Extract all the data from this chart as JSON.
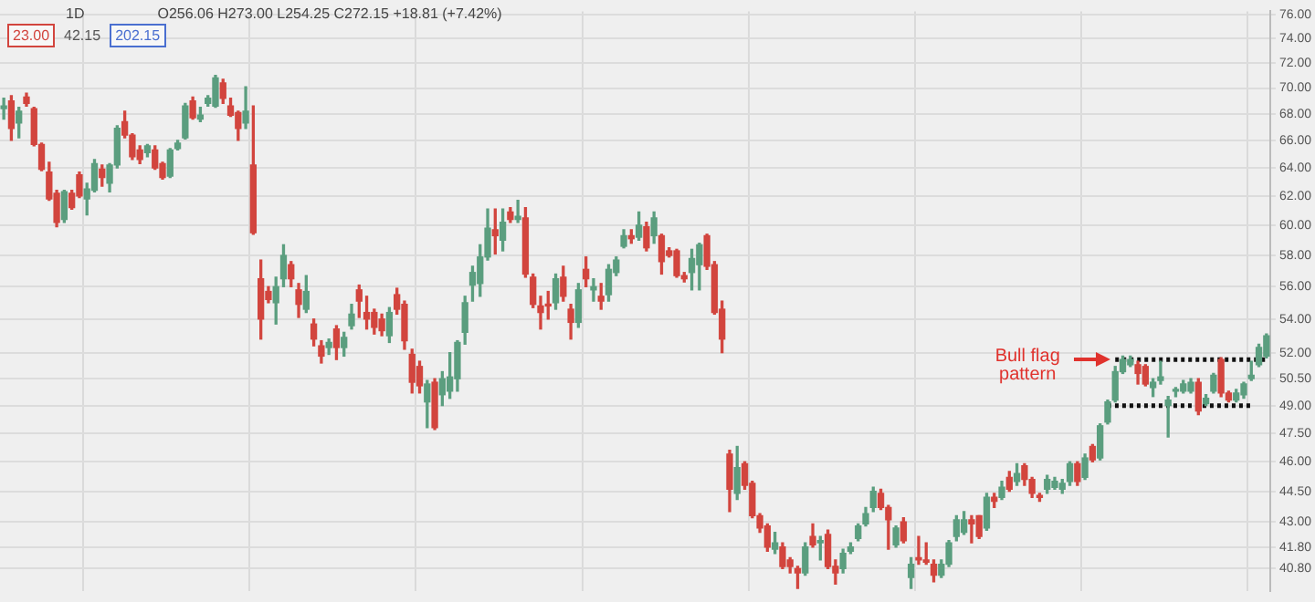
{
  "chart_data": {
    "type": "candlestick",
    "annotations": [
      "1D",
      "O256.06 H273.00 L254.25 C272.15 +18.81 (+7.42%)",
      "23.00",
      "42.15",
      "202.15",
      "Bull flag pattern"
    ],
    "categories": [
      null,
      null,
      null,
      null,
      null,
      null,
      null,
      null,
      null,
      null,
      null,
      null,
      null,
      null,
      null,
      null,
      null,
      null,
      null,
      null,
      null,
      null,
      null,
      null,
      null,
      null,
      null,
      null,
      null,
      null,
      null,
      null,
      null,
      null,
      null,
      null,
      null,
      null,
      null,
      null,
      null,
      null,
      null,
      null,
      null,
      null,
      null,
      null,
      null,
      null,
      null,
      null,
      null,
      null,
      null,
      null,
      null,
      null,
      null,
      null,
      null,
      null,
      null,
      null,
      null,
      null,
      null,
      null,
      null,
      null,
      null,
      null,
      null,
      null,
      null,
      null,
      null,
      null,
      null,
      null,
      null,
      null,
      null,
      null,
      null,
      null,
      null,
      null,
      null,
      null,
      null,
      null,
      null,
      null,
      null,
      null,
      null,
      null,
      null,
      null,
      null,
      null,
      null,
      null,
      null,
      null,
      null,
      null,
      null,
      null,
      null,
      null,
      null,
      null,
      null,
      null,
      null,
      null,
      null,
      null,
      null,
      null,
      null,
      null,
      null,
      null,
      null,
      null,
      null,
      null,
      null,
      null,
      null,
      null,
      null,
      null,
      null,
      null,
      null,
      null,
      null,
      null,
      null,
      null,
      null,
      null,
      null,
      null,
      null,
      null,
      null,
      null,
      null,
      null,
      null,
      null,
      null,
      null,
      null,
      null,
      null,
      null,
      null,
      null,
      null,
      null,
      null,
      null
    ],
    "ohlc": [
      [
        68.4,
        69.2,
        67.6,
        68.6
      ],
      [
        69.0,
        69.4,
        66.0,
        66.9
      ],
      [
        67.3,
        68.5,
        66.2,
        68.2
      ],
      [
        69.3,
        69.6,
        68.6,
        68.8
      ],
      [
        68.4,
        68.5,
        65.6,
        65.7
      ],
      [
        65.7,
        65.8,
        63.8,
        63.9
      ],
      [
        63.7,
        64.4,
        61.7,
        61.8
      ],
      [
        62.2,
        62.4,
        59.9,
        60.2
      ],
      [
        60.4,
        62.4,
        60.2,
        62.3
      ],
      [
        62.2,
        62.4,
        61.1,
        61.2
      ],
      [
        63.5,
        63.7,
        61.9,
        62.0
      ],
      [
        61.8,
        62.9,
        60.7,
        62.5
      ],
      [
        62.4,
        64.6,
        62.3,
        64.3
      ],
      [
        63.9,
        64.2,
        62.7,
        63.3
      ],
      [
        62.9,
        64.3,
        62.3,
        64.2
      ],
      [
        64.2,
        67.1,
        64.0,
        66.9
      ],
      [
        67.4,
        68.2,
        66.2,
        66.4
      ],
      [
        66.4,
        66.5,
        64.6,
        64.8
      ],
      [
        65.3,
        65.6,
        64.3,
        64.6
      ],
      [
        65.1,
        65.7,
        64.8,
        65.6
      ],
      [
        65.3,
        65.6,
        63.9,
        64.0
      ],
      [
        64.3,
        64.4,
        63.2,
        63.3
      ],
      [
        63.4,
        65.4,
        63.3,
        65.3
      ],
      [
        65.4,
        66.0,
        65.3,
        65.8
      ],
      [
        66.2,
        68.8,
        66.1,
        68.6
      ],
      [
        69.0,
        69.3,
        67.6,
        67.7
      ],
      [
        67.6,
        68.5,
        67.4,
        67.9
      ],
      [
        68.8,
        69.4,
        68.6,
        69.2
      ],
      [
        68.6,
        71.0,
        68.5,
        70.8
      ],
      [
        70.4,
        70.7,
        68.8,
        69.2
      ],
      [
        68.6,
        69.2,
        67.8,
        67.9
      ],
      [
        68.1,
        68.2,
        66.0,
        66.9
      ],
      [
        67.3,
        70.1,
        66.9,
        68.2
      ],
      [
        64.2,
        68.6,
        59.4,
        59.5
      ],
      [
        56.5,
        57.7,
        52.8,
        54.0
      ],
      [
        55.7,
        56.0,
        55.0,
        55.2
      ],
      [
        55.0,
        56.6,
        53.7,
        56.0
      ],
      [
        56.5,
        58.7,
        56.0,
        58.0
      ],
      [
        57.4,
        57.6,
        56.0,
        56.5
      ],
      [
        55.8,
        56.2,
        54.1,
        54.9
      ],
      [
        54.6,
        56.7,
        54.4,
        55.7
      ],
      [
        53.7,
        54.0,
        52.4,
        52.8
      ],
      [
        52.4,
        52.7,
        51.4,
        51.8
      ],
      [
        52.3,
        52.8,
        51.9,
        52.6
      ],
      [
        53.4,
        53.6,
        51.6,
        52.3
      ],
      [
        52.3,
        53.2,
        51.8,
        52.9
      ],
      [
        53.6,
        54.9,
        53.4,
        54.3
      ],
      [
        55.8,
        56.1,
        54.1,
        55.1
      ],
      [
        54.4,
        55.4,
        53.4,
        54.0
      ],
      [
        54.4,
        54.6,
        53.1,
        53.5
      ],
      [
        54.0,
        54.3,
        53.0,
        53.3
      ],
      [
        53.0,
        54.7,
        52.6,
        54.4
      ],
      [
        55.5,
        55.9,
        54.3,
        54.6
      ],
      [
        54.9,
        55.1,
        52.2,
        52.7
      ],
      [
        51.9,
        52.2,
        49.7,
        50.3
      ],
      [
        51.2,
        51.5,
        49.7,
        50.1
      ],
      [
        49.2,
        50.4,
        47.8,
        50.2
      ],
      [
        50.3,
        50.5,
        47.7,
        47.8
      ],
      [
        49.6,
        50.9,
        49.0,
        50.5
      ],
      [
        49.8,
        52.0,
        49.4,
        50.6
      ],
      [
        50.5,
        52.7,
        49.8,
        52.6
      ],
      [
        53.2,
        55.4,
        52.5,
        55.0
      ],
      [
        56.1,
        57.3,
        55.1,
        56.9
      ],
      [
        56.2,
        58.7,
        55.4,
        57.9
      ],
      [
        57.9,
        61.1,
        57.7,
        59.8
      ],
      [
        59.7,
        61.1,
        58.1,
        59.3
      ],
      [
        59.0,
        61.1,
        58.3,
        60.2
      ],
      [
        60.9,
        61.2,
        60.2,
        60.4
      ],
      [
        60.4,
        61.7,
        60.2,
        60.6
      ],
      [
        60.5,
        61.2,
        56.6,
        56.8
      ],
      [
        56.6,
        56.8,
        54.7,
        54.9
      ],
      [
        54.8,
        55.4,
        53.4,
        54.4
      ],
      [
        54.9,
        55.7,
        54.0,
        54.8
      ],
      [
        55.0,
        56.8,
        54.6,
        56.5
      ],
      [
        56.6,
        57.3,
        55.1,
        55.4
      ],
      [
        54.6,
        54.9,
        52.8,
        53.8
      ],
      [
        53.8,
        56.2,
        53.5,
        55.8
      ],
      [
        57.1,
        57.9,
        56.0,
        56.5
      ],
      [
        55.8,
        56.5,
        55.1,
        56.0
      ],
      [
        55.4,
        56.2,
        54.6,
        55.1
      ],
      [
        55.5,
        57.4,
        55.1,
        57.1
      ],
      [
        56.9,
        57.9,
        56.7,
        57.7
      ],
      [
        58.6,
        59.7,
        58.5,
        59.3
      ],
      [
        59.3,
        59.7,
        58.8,
        59.1
      ],
      [
        59.2,
        60.9,
        59.0,
        60.0
      ],
      [
        59.9,
        60.2,
        58.3,
        58.5
      ],
      [
        59.3,
        60.9,
        58.8,
        60.5
      ],
      [
        59.3,
        59.4,
        56.8,
        57.6
      ],
      [
        58.3,
        58.5,
        57.9,
        58.0
      ],
      [
        58.3,
        58.4,
        56.6,
        56.7
      ],
      [
        56.7,
        56.9,
        56.3,
        56.5
      ],
      [
        56.9,
        58.4,
        55.8,
        57.8
      ],
      [
        57.4,
        58.8,
        55.8,
        58.7
      ],
      [
        59.3,
        59.4,
        57.1,
        57.3
      ],
      [
        57.4,
        57.6,
        54.3,
        54.4
      ],
      [
        54.6,
        55.1,
        52.0,
        52.8
      ],
      [
        46.4,
        46.6,
        43.5,
        44.6
      ],
      [
        44.4,
        46.8,
        44.1,
        45.7
      ],
      [
        45.9,
        46.0,
        44.6,
        44.8
      ],
      [
        44.9,
        45.0,
        43.2,
        43.3
      ],
      [
        43.3,
        43.4,
        42.5,
        42.7
      ],
      [
        42.8,
        42.9,
        41.6,
        41.8
      ],
      [
        41.7,
        42.5,
        41.5,
        42.0
      ],
      [
        41.8,
        42.0,
        40.8,
        40.9
      ],
      [
        41.2,
        41.3,
        40.6,
        40.9
      ],
      [
        40.8,
        40.9,
        39.9,
        40.6
      ],
      [
        40.6,
        42.0,
        40.5,
        41.8
      ],
      [
        42.3,
        42.9,
        41.8,
        41.9
      ],
      [
        42.0,
        42.3,
        41.2,
        42.1
      ],
      [
        42.4,
        42.6,
        40.8,
        40.9
      ],
      [
        40.9,
        41.2,
        40.1,
        40.6
      ],
      [
        40.8,
        41.7,
        40.6,
        41.5
      ],
      [
        41.6,
        42.0,
        41.5,
        41.8
      ],
      [
        42.2,
        42.9,
        42.1,
        42.8
      ],
      [
        42.9,
        43.7,
        42.8,
        43.4
      ],
      [
        43.7,
        44.7,
        43.5,
        44.5
      ],
      [
        44.4,
        44.6,
        43.6,
        43.7
      ],
      [
        43.7,
        43.8,
        41.7,
        43.1
      ],
      [
        41.9,
        42.8,
        41.8,
        42.7
      ],
      [
        43.0,
        43.2,
        42.0,
        42.1
      ],
      [
        40.4,
        41.3,
        39.9,
        41.0
      ],
      [
        41.3,
        42.3,
        41.0,
        41.2
      ],
      [
        41.2,
        42.0,
        41.0,
        41.1
      ],
      [
        41.0,
        41.2,
        40.2,
        40.5
      ],
      [
        40.5,
        41.2,
        40.4,
        41.0
      ],
      [
        41.0,
        42.1,
        40.9,
        42.0
      ],
      [
        42.3,
        43.3,
        42.1,
        43.1
      ],
      [
        42.5,
        43.5,
        42.4,
        43.1
      ],
      [
        43.1,
        43.3,
        42.0,
        42.9
      ],
      [
        43.3,
        43.3,
        42.2,
        42.3
      ],
      [
        42.7,
        44.4,
        42.6,
        44.2
      ],
      [
        44.2,
        44.4,
        43.7,
        44.0
      ],
      [
        44.2,
        45.0,
        44.1,
        44.7
      ],
      [
        45.2,
        45.5,
        44.5,
        44.6
      ],
      [
        45.0,
        45.9,
        44.8,
        45.4
      ],
      [
        45.8,
        45.9,
        44.8,
        45.1
      ],
      [
        45.1,
        45.2,
        44.2,
        44.4
      ],
      [
        44.3,
        44.4,
        44.0,
        44.2
      ],
      [
        44.6,
        45.3,
        44.4,
        45.1
      ],
      [
        44.7,
        45.2,
        44.6,
        45.0
      ],
      [
        44.6,
        45.1,
        44.4,
        44.9
      ],
      [
        45.0,
        46.0,
        44.8,
        45.9
      ],
      [
        45.9,
        46.0,
        44.8,
        45.0
      ],
      [
        45.2,
        46.4,
        45.1,
        46.2
      ],
      [
        46.8,
        46.9,
        46.0,
        46.1
      ],
      [
        46.2,
        48.0,
        46.1,
        47.9
      ],
      [
        48.1,
        49.3,
        48.0,
        49.2
      ],
      [
        49.3,
        51.2,
        49.2,
        50.9
      ],
      [
        50.9,
        51.8,
        50.8,
        51.6
      ],
      [
        51.3,
        51.8,
        51.2,
        51.6
      ],
      [
        51.3,
        51.5,
        50.2,
        50.8
      ],
      [
        51.2,
        51.3,
        50.1,
        50.2
      ],
      [
        50.0,
        50.5,
        49.5,
        50.3
      ],
      [
        50.4,
        51.5,
        50.2,
        50.6
      ],
      [
        49.0,
        49.5,
        47.3,
        49.3
      ],
      [
        49.8,
        50.0,
        49.5,
        49.9
      ],
      [
        49.8,
        50.4,
        49.7,
        50.2
      ],
      [
        49.8,
        50.5,
        49.7,
        50.3
      ],
      [
        50.3,
        50.5,
        48.5,
        48.7
      ],
      [
        49.1,
        49.6,
        49.0,
        49.4
      ],
      [
        49.8,
        50.8,
        49.7,
        50.7
      ],
      [
        51.6,
        51.7,
        49.5,
        49.7
      ],
      [
        49.7,
        49.8,
        49.2,
        49.3
      ],
      [
        49.3,
        49.9,
        49.2,
        49.7
      ],
      [
        49.6,
        50.3,
        49.4,
        50.2
      ],
      [
        50.5,
        51.5,
        50.4,
        50.7
      ],
      [
        51.3,
        52.5,
        51.2,
        52.3
      ],
      [
        51.8,
        53.1,
        51.7,
        53.0
      ]
    ],
    "colors": [
      "#5b9e7f",
      "#d2453e",
      "#5b9e7f",
      "#d2453e",
      "#d2453e",
      "#d2453e",
      "#d2453e",
      "#d2453e",
      "#5b9e7f",
      "#d2453e",
      "#d2453e",
      "#5b9e7f",
      "#5b9e7f",
      "#d2453e",
      "#5b9e7f",
      "#5b9e7f",
      "#d2453e",
      "#d2453e",
      "#d2453e",
      "#5b9e7f",
      "#d2453e",
      "#d2453e",
      "#5b9e7f",
      "#5b9e7f",
      "#5b9e7f",
      "#d2453e",
      "#5b9e7f",
      "#5b9e7f",
      "#5b9e7f",
      "#d2453e",
      "#d2453e",
      "#d2453e",
      "#5b9e7f",
      "#d2453e",
      "#d2453e",
      "#d2453e",
      "#5b9e7f",
      "#5b9e7f",
      "#d2453e",
      "#d2453e",
      "#5b9e7f",
      "#d2453e",
      "#d2453e",
      "#5b9e7f",
      "#d2453e",
      "#5b9e7f",
      "#5b9e7f",
      "#d2453e",
      "#d2453e",
      "#d2453e",
      "#d2453e",
      "#5b9e7f",
      "#d2453e",
      "#d2453e",
      "#d2453e",
      "#d2453e",
      "#5b9e7f",
      "#d2453e",
      "#5b9e7f",
      "#5b9e7f",
      "#5b9e7f",
      "#5b9e7f",
      "#5b9e7f",
      "#5b9e7f",
      "#5b9e7f",
      "#d2453e",
      "#5b9e7f",
      "#d2453e",
      "#5b9e7f",
      "#d2453e",
      "#d2453e",
      "#d2453e",
      "#d2453e",
      "#5b9e7f",
      "#d2453e",
      "#d2453e",
      "#5b9e7f",
      "#d2453e",
      "#5b9e7f",
      "#d2453e",
      "#5b9e7f",
      "#5b9e7f",
      "#5b9e7f",
      "#d2453e",
      "#5b9e7f",
      "#d2453e",
      "#5b9e7f",
      "#d2453e",
      "#d2453e",
      "#d2453e",
      "#d2453e",
      "#5b9e7f",
      "#5b9e7f",
      "#d2453e",
      "#d2453e",
      "#d2453e",
      "#d2453e",
      "#5b9e7f",
      "#d2453e",
      "#d2453e",
      "#d2453e",
      "#d2453e",
      "#5b9e7f",
      "#d2453e",
      "#d2453e",
      "#d2453e",
      "#5b9e7f",
      "#d2453e",
      "#5b9e7f",
      "#d2453e",
      "#d2453e",
      "#5b9e7f",
      "#5b9e7f",
      "#5b9e7f",
      "#5b9e7f",
      "#5b9e7f",
      "#d2453e",
      "#d2453e",
      "#5b9e7f",
      "#d2453e",
      "#5b9e7f",
      "#d2453e",
      "#d2453e",
      "#d2453e",
      "#5b9e7f",
      "#5b9e7f",
      "#5b9e7f",
      "#5b9e7f",
      "#d2453e",
      "#d2453e",
      "#5b9e7f",
      "#d2453e",
      "#5b9e7f",
      "#d2453e",
      "#5b9e7f",
      "#d2453e",
      "#d2453e",
      "#d2453e",
      "#5b9e7f",
      "#5b9e7f",
      "#5b9e7f",
      "#5b9e7f",
      "#d2453e",
      "#5b9e7f",
      "#d2453e",
      "#5b9e7f",
      "#5b9e7f",
      "#5b9e7f",
      "#5b9e7f",
      "#5b9e7f",
      "#d2453e",
      "#d2453e",
      "#5b9e7f",
      "#5b9e7f",
      "#5b9e7f",
      "#5b9e7f",
      "#5b9e7f",
      "#5b9e7f",
      "#d2453e",
      "#5b9e7f",
      "#5b9e7f",
      "#d2453e",
      "#d2453e",
      "#5b9e7f",
      "#5b9e7f",
      "#5b9e7f",
      "#5b9e7f",
      "#5b9e7f"
    ],
    "series": [
      {
        "type": "line",
        "color": "#111111",
        "values": [
          null,
          null,
          null,
          null,
          null,
          null,
          null,
          null,
          null,
          null,
          null,
          null,
          null,
          null,
          null,
          null,
          null,
          null,
          null,
          null,
          null,
          null,
          null,
          null,
          null,
          null,
          null,
          null,
          null,
          null,
          null,
          null,
          null,
          null,
          null,
          null,
          null,
          null,
          null,
          null,
          null,
          null,
          null,
          null,
          null,
          null,
          null,
          null,
          null,
          null,
          null,
          null,
          null,
          null,
          null,
          null,
          null,
          null,
          null,
          null,
          null,
          null,
          null,
          null,
          null,
          null,
          null,
          null,
          null,
          null,
          null,
          null,
          null,
          null,
          null,
          null,
          null,
          null,
          null,
          null,
          null,
          null,
          null,
          null,
          null,
          null,
          null,
          null,
          null,
          null,
          null,
          null,
          null,
          null,
          null,
          null,
          null,
          null,
          null,
          null,
          null,
          null,
          null,
          null,
          null,
          null,
          null,
          null,
          null,
          null,
          null,
          null,
          null,
          null,
          null,
          null,
          null,
          null,
          null,
          null,
          null,
          null,
          null,
          null,
          null,
          null,
          null,
          null,
          null,
          null,
          null,
          null,
          null,
          null,
          null,
          null,
          null,
          null,
          null,
          null,
          null,
          null,
          null,
          null,
          null,
          null,
          null,
          51.6,
          51.6,
          51.6,
          51.6,
          51.6,
          51.6,
          51.6,
          51.6,
          51.6,
          51.6,
          51.6,
          51.6,
          51.6,
          51.6,
          51.6,
          51.6,
          51.6,
          51.6,
          51.6,
          51.6,
          51.6
        ]
      },
      {
        "type": "line",
        "color": "#111111",
        "values": [
          null,
          null,
          null,
          null,
          null,
          null,
          null,
          null,
          null,
          null,
          null,
          null,
          null,
          null,
          null,
          null,
          null,
          null,
          null,
          null,
          null,
          null,
          null,
          null,
          null,
          null,
          null,
          null,
          null,
          null,
          null,
          null,
          null,
          null,
          null,
          null,
          null,
          null,
          null,
          null,
          null,
          null,
          null,
          null,
          null,
          null,
          null,
          null,
          null,
          null,
          null,
          null,
          null,
          null,
          null,
          null,
          null,
          null,
          null,
          null,
          null,
          null,
          null,
          null,
          null,
          null,
          null,
          null,
          null,
          null,
          null,
          null,
          null,
          null,
          null,
          null,
          null,
          null,
          null,
          null,
          null,
          null,
          null,
          null,
          null,
          null,
          null,
          null,
          null,
          null,
          null,
          null,
          null,
          null,
          null,
          null,
          null,
          null,
          null,
          null,
          null,
          null,
          null,
          null,
          null,
          null,
          null,
          null,
          null,
          null,
          null,
          null,
          null,
          null,
          null,
          null,
          null,
          null,
          null,
          null,
          null,
          null,
          null,
          null,
          null,
          null,
          null,
          null,
          null,
          null,
          null,
          null,
          null,
          null,
          null,
          null,
          null,
          null,
          null,
          null,
          null,
          null,
          null,
          null,
          null,
          null,
          49.0,
          49.0,
          49.0,
          49.0,
          49.0,
          49.0,
          49.0,
          49.0,
          49.0,
          49.0,
          49.0,
          49.0,
          49.0,
          49.0,
          49.0,
          49.0,
          49.0,
          49.0,
          49.0,
          49.0,
          null,
          null
        ]
      }
    ],
    "line_style": "dotted",
    "log": true,
    "ylim": [
      39.8,
      76.3
    ],
    "yticks": [
      {
        "value": 76,
        "label": "76.00"
      },
      {
        "value": 74,
        "label": "74.00"
      },
      {
        "value": 72,
        "label": "72.00"
      },
      {
        "value": 70,
        "label": "70.00"
      },
      {
        "value": 68,
        "label": "68.00"
      },
      {
        "value": 66,
        "label": "66.00"
      },
      {
        "value": 64,
        "label": "64.00"
      },
      {
        "value": 62,
        "label": "62.00"
      },
      {
        "value": 60,
        "label": "60.00"
      },
      {
        "value": 58,
        "label": "58.00"
      },
      {
        "value": 56,
        "label": "56.00"
      },
      {
        "value": 54,
        "label": "54.00"
      },
      {
        "value": 52,
        "label": "52.00"
      },
      {
        "value": 50.5,
        "label": "50.50"
      },
      {
        "value": 49,
        "label": "49.00"
      },
      {
        "value": 47.5,
        "label": "47.50"
      },
      {
        "value": 46,
        "label": "46.00"
      },
      {
        "value": 44.5,
        "label": "44.50"
      },
      {
        "value": 43,
        "label": "43.00"
      },
      {
        "value": 41.8,
        "label": "41.80"
      },
      {
        "value": 40.8,
        "label": "40.80"
      }
    ],
    "grid": true,
    "tick_labels": "y"
  }
}
